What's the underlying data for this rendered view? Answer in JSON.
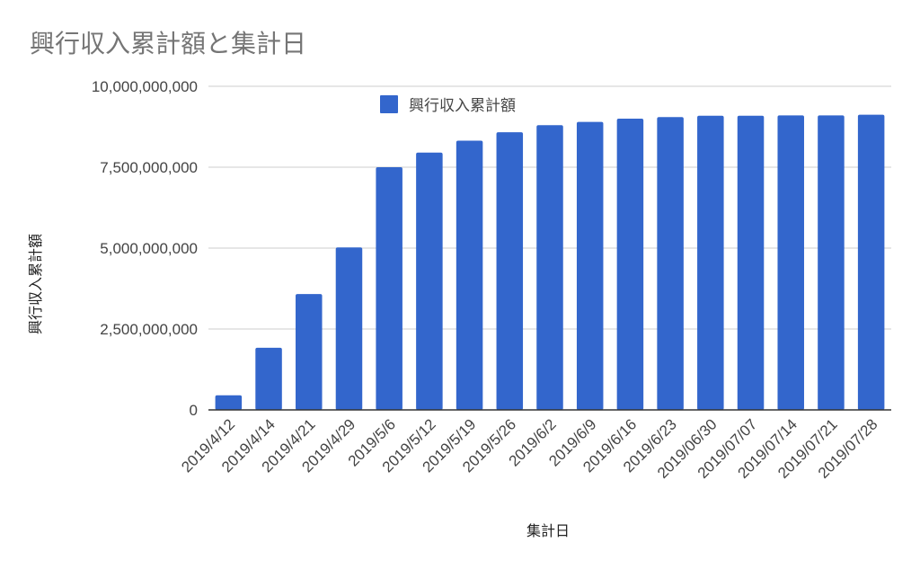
{
  "chart_data": {
    "type": "bar",
    "title": "興行収入累計額と集計日",
    "xlabel": "集計日",
    "ylabel": "興行収入累計額",
    "ylim": [
      0,
      10000000000
    ],
    "yticks": [
      0,
      2500000000,
      5000000000,
      7500000000,
      10000000000
    ],
    "ytick_labels": [
      "0",
      "2,500,000,000",
      "5,000,000,000",
      "7,500,000,000",
      "10,000,000,000"
    ],
    "grid": true,
    "legend_position": "top",
    "categories": [
      "2019/4/12",
      "2019/4/14",
      "2019/4/21",
      "2019/4/29",
      "2019/5/6",
      "2019/5/12",
      "2019/5/19",
      "2019/5/26",
      "2019/6/2",
      "2019/6/9",
      "2019/6/16",
      "2019/6/23",
      "2019/06/30",
      "2019/07/07",
      "2019/07/14",
      "2019/07/21",
      "2019/07/28"
    ],
    "series": [
      {
        "name": "興行収入累計額",
        "color": "#3366cc",
        "values": [
          450000000,
          1920000000,
          3580000000,
          5020000000,
          7500000000,
          7950000000,
          8320000000,
          8580000000,
          8800000000,
          8900000000,
          9000000000,
          9050000000,
          9090000000,
          9090000000,
          9100000000,
          9100000000,
          9120000000
        ]
      }
    ]
  }
}
